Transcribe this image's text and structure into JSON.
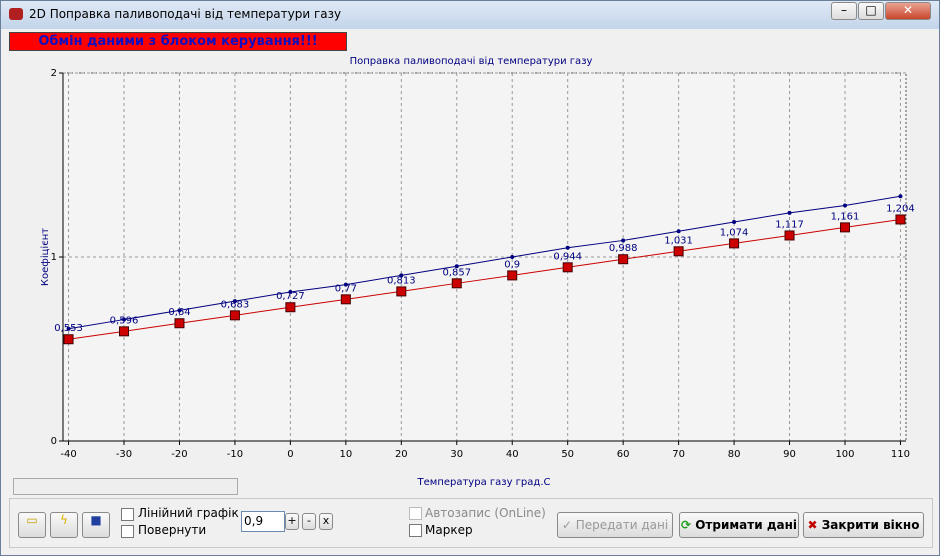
{
  "window": {
    "title": "2D Поправка паливоподачі від температури газу",
    "banner": "Обмін даними з блоком керування!!!"
  },
  "chart_data": {
    "type": "line",
    "title": "Поправка паливоподачі від температури газу",
    "x_label": "Температура газу град.С",
    "y_label": "Коефіцієнт",
    "x": [
      -40,
      -30,
      -20,
      -10,
      0,
      10,
      20,
      30,
      40,
      50,
      60,
      70,
      80,
      90,
      100,
      110
    ],
    "xlim": [
      -41,
      111
    ],
    "xticks": [
      -40,
      -30,
      -20,
      -10,
      0,
      10,
      20,
      30,
      40,
      50,
      60,
      70,
      80,
      90,
      100,
      110
    ],
    "ylim": [
      0,
      2
    ],
    "yticks": [
      0,
      1,
      2
    ],
    "grid": true,
    "series": [
      {
        "color": "#000080",
        "values": [
          0.61,
          0.66,
          0.71,
          0.76,
          0.81,
          0.85,
          0.9,
          0.95,
          1.0,
          1.05,
          1.09,
          1.14,
          1.19,
          1.24,
          1.28,
          1.33
        ]
      },
      {
        "color": "#cc0000",
        "values": [
          0.553,
          0.596,
          0.64,
          0.683,
          0.727,
          0.77,
          0.813,
          0.857,
          0.9,
          0.944,
          0.988,
          1.031,
          1.074,
          1.117,
          1.161,
          1.204
        ],
        "value_labels": [
          "0,553",
          "0,596",
          "0,64",
          "0,683",
          "0,727",
          "0,77",
          "0,813",
          "0,857",
          "0,9",
          "0,944",
          "0,988",
          "1,031",
          "1,074",
          "1,117",
          "1,161",
          "1,204"
        ]
      }
    ]
  },
  "controls": {
    "linear": "Лінійний графік",
    "rotate": "Повернути",
    "step": "0,9",
    "plus": "+",
    "minus": "-",
    "times": "x",
    "autosave": "Автозапис (OnLine)",
    "marker": "Маркер",
    "send": "Передати дані",
    "receive": "Отримати дані",
    "close": "Закрити вікно"
  }
}
